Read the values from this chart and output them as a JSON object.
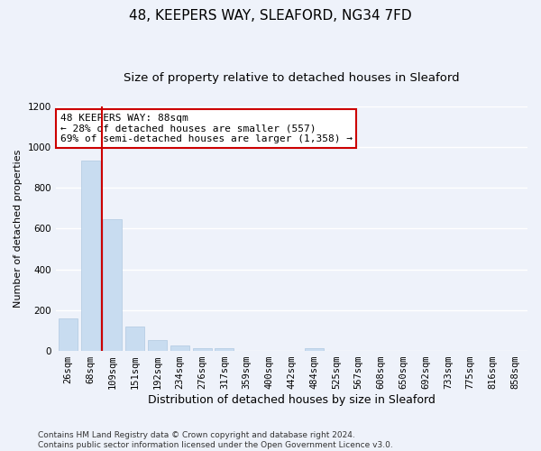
{
  "title1": "48, KEEPERS WAY, SLEAFORD, NG34 7FD",
  "title2": "Size of property relative to detached houses in Sleaford",
  "xlabel": "Distribution of detached houses by size in Sleaford",
  "ylabel": "Number of detached properties",
  "categories": [
    "26sqm",
    "68sqm",
    "109sqm",
    "151sqm",
    "192sqm",
    "234sqm",
    "276sqm",
    "317sqm",
    "359sqm",
    "400sqm",
    "442sqm",
    "484sqm",
    "525sqm",
    "567sqm",
    "608sqm",
    "650sqm",
    "692sqm",
    "733sqm",
    "775sqm",
    "816sqm",
    "858sqm"
  ],
  "values": [
    160,
    935,
    645,
    120,
    55,
    27,
    12,
    12,
    0,
    0,
    0,
    12,
    0,
    0,
    0,
    0,
    0,
    0,
    0,
    0,
    0
  ],
  "bar_color": "#c8dcf0",
  "bar_edge_color": "#b0c8e0",
  "vline_color": "#cc0000",
  "annotation_text": "48 KEEPERS WAY: 88sqm\n← 28% of detached houses are smaller (557)\n69% of semi-detached houses are larger (1,358) →",
  "annotation_box_color": "#ffffff",
  "annotation_box_edge": "#cc0000",
  "ylim": [
    0,
    1200
  ],
  "yticks": [
    0,
    200,
    400,
    600,
    800,
    1000,
    1200
  ],
  "footer": "Contains HM Land Registry data © Crown copyright and database right 2024.\nContains public sector information licensed under the Open Government Licence v3.0.",
  "bg_color": "#eef2fa",
  "plot_bg_color": "#eef2fa",
  "grid_color": "#ffffff",
  "title1_fontsize": 11,
  "title2_fontsize": 9.5,
  "xlabel_fontsize": 9,
  "ylabel_fontsize": 8,
  "tick_fontsize": 7.5,
  "footer_fontsize": 6.5
}
